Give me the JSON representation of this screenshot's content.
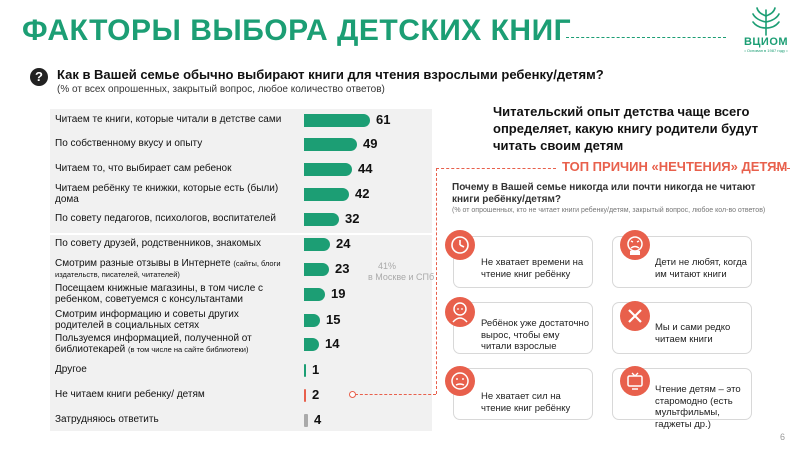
{
  "title": "ФАКТОРЫ ВЫБОРА ДЕТСКИХ КНИГ",
  "logo": {
    "name": "ВЦИОМ",
    "since": "• Основан в 1987 году •"
  },
  "question": {
    "icon": "?",
    "text": "Как в Вашей семье обычно выбирают книги для чтения взрослыми ребенку/детям?",
    "note": "(% от всех опрошенных, закрытый вопрос,  любое количество ответов)"
  },
  "chart_data": {
    "type": "bar",
    "orientation": "horizontal",
    "title": "Как в Вашей семье обычно выбирают книги для чтения взрослыми ребенку/детям?",
    "unit": "% от всех опрошенных",
    "categories": [
      "Читаем те книги, которые читали в детстве сами",
      "По собственному вкусу и опыту",
      "Читаем то, что выбирает сам ребенок",
      "Читаем ребёнку те книжки, которые есть (были) дома",
      "По совету педагогов, психологов, воспитателей",
      "По совету друзей, родственников, знакомых",
      "Смотрим разные отзывы в Интернете",
      "Посещаем книжные магазины, в том числе с ребенком, советуемся с консультантами",
      "Смотрим информацию и советы других родителей в социальных сетях",
      "Пользуемся информацией, полученной от библиотекарей",
      "Другое",
      "Не читаем книги ребенку/ детям",
      "Затрудняюсь ответить"
    ],
    "values": [
      61,
      49,
      44,
      42,
      32,
      24,
      23,
      19,
      15,
      14,
      1,
      2,
      4
    ],
    "xlim": [
      0,
      61
    ],
    "annotation": {
      "text_line1": "41%",
      "text_line2": "в Москве и СПб",
      "row": 6
    }
  },
  "rows": [
    {
      "label": "Читаем те книги, которые читали в детстве сами",
      "small": "",
      "value": "61",
      "color": "#1c9e74"
    },
    {
      "label": "По собственному вкусу и опыту",
      "small": "",
      "value": "49",
      "color": "#1c9e74"
    },
    {
      "label": "Читаем то, что выбирает сам ребенок",
      "small": "",
      "value": "44",
      "color": "#1c9e74"
    },
    {
      "label": "Читаем ребёнку те книжки, которые есть (были) дома",
      "small": "",
      "value": "42",
      "color": "#1c9e74"
    },
    {
      "label": "По совету педагогов, психологов, воспитателей",
      "small": "",
      "value": "32",
      "color": "#1c9e74"
    },
    {
      "label": "По совету друзей, родственников, знакомых",
      "small": "",
      "value": "24",
      "color": "#1c9e74"
    },
    {
      "label": "Смотрим разные отзывы в Интернете",
      "small": "(сайты, блоги издательств, писателей, читателей)",
      "value": "23",
      "color": "#1c9e74"
    },
    {
      "label": "Посещаем книжные магазины, в том числе с ребенком, советуемся с консультантами",
      "small": "",
      "value": "19",
      "color": "#1c9e74"
    },
    {
      "label": "Смотрим информацию и советы других родителей в социальных сетях",
      "small": "",
      "value": "15",
      "color": "#1c9e74"
    },
    {
      "label": "Пользуемся информацией, полученной от библиотекарей",
      "small": "(в том числе на сайте библиотеки)",
      "value": "14",
      "color": "#1c9e74"
    },
    {
      "label": "Другое",
      "small": "",
      "value": "1",
      "color": "#1c9e74"
    },
    {
      "label": "Не читаем книги ребенку/ детям",
      "small": "",
      "value": "2",
      "color": "#e8604c"
    },
    {
      "label": "Затрудняюсь ответить",
      "small": "",
      "value": "4",
      "color": "#aaaaaa"
    }
  ],
  "note41": {
    "line1": "41%",
    "line2": "в Москве и СПб"
  },
  "headline": "Читательский опыт детства чаще всего определяет, какую книгу родители будут читать своим детям",
  "top_reasons": {
    "title": "ТОП ПРИЧИН «НЕЧТЕНИЯ» ДЕТЯМ",
    "question": "Почему в Вашей семье никогда или почти никогда не читают книги ребёнку/детям?",
    "note": "(% от опрошенных, кто не читает книги ребенку/детям, закрытый вопрос, любое кол-во ответов)",
    "cards": [
      {
        "icon": "clock-icon",
        "text": "Не хватает времени на чтение книг ребёнку"
      },
      {
        "icon": "angry-child-icon",
        "text": "Дети не любят, когда им читают книги"
      },
      {
        "icon": "grown-child-icon",
        "text": "Ребёнок уже достаточно вырос, чтобы ему читали взрослые"
      },
      {
        "icon": "cross-icon",
        "text": "Мы и сами редко читаем книги"
      },
      {
        "icon": "tired-face-icon",
        "text": "Не хватает сил на чтение книг ребёнку"
      },
      {
        "icon": "tv-icon",
        "text": "Чтение детям – это старомодно (есть мультфильмы, гаджеты др.)"
      }
    ]
  },
  "colors": {
    "green": "#1c9e74",
    "coral": "#e8604c",
    "gray": "#aaaaaa"
  },
  "page_number": "6"
}
